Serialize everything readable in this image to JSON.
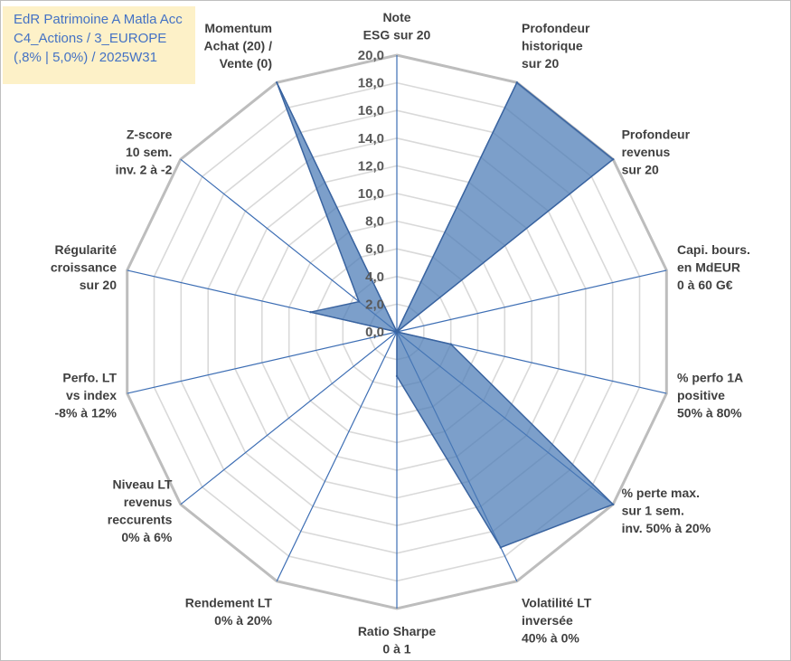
{
  "chart_data": {
    "type": "radar",
    "title_lines": [
      "EdR Patrimoine A Matla Acc",
      "C4_Actions / 3_EUROPE",
      "(,8% | 5,0%) / 2025W31"
    ],
    "r_min": 0,
    "r_max": 20,
    "r_step": 2,
    "r_tick_labels": [
      "0,0",
      "2,0",
      "4,0",
      "6,0",
      "8,0",
      "10,0",
      "12,0",
      "14,0",
      "16,0",
      "18,0",
      "20,0"
    ],
    "axes": [
      {
        "label_lines": [
          "Note",
          "ESG sur 20"
        ]
      },
      {
        "label_lines": [
          "Profondeur",
          "historique",
          "sur 20"
        ]
      },
      {
        "label_lines": [
          "Profondeur",
          "revenus",
          "sur 20"
        ]
      },
      {
        "label_lines": [
          "Capi. bours.",
          "en MdEUR",
          "0 à 60 G€"
        ]
      },
      {
        "label_lines": [
          "% perfo 1A",
          "positive",
          "50% à 80%"
        ]
      },
      {
        "label_lines": [
          "% perte max.",
          "sur 1 sem.",
          "inv. 50% à 20%"
        ]
      },
      {
        "label_lines": [
          "Volatilité LT",
          "inversée",
          "40% à 0%"
        ]
      },
      {
        "label_lines": [
          "Ratio Sharpe",
          "0 à 1"
        ]
      },
      {
        "label_lines": [
          "Rendement LT",
          "0% à 20%"
        ]
      },
      {
        "label_lines": [
          "Niveau LT",
          "revenus",
          "reccurents",
          "0% à 6%"
        ]
      },
      {
        "label_lines": [
          "Perfo. LT",
          "vs index",
          "-8% à 12%"
        ]
      },
      {
        "label_lines": [
          "Régularité",
          "croissance",
          "sur 20"
        ]
      },
      {
        "label_lines": [
          "Z-score",
          "10 sem.",
          "inv. 2 à -2"
        ]
      },
      {
        "label_lines": [
          "Momentum",
          "Achat (20) /",
          "Vente (0)"
        ]
      }
    ],
    "values": [
      0,
      20,
      20,
      0,
      4.0,
      20,
      17.3,
      3.2,
      0,
      0,
      0,
      6.4,
      3.5,
      20
    ],
    "series_color": "#4a7ab5",
    "grid": true
  }
}
